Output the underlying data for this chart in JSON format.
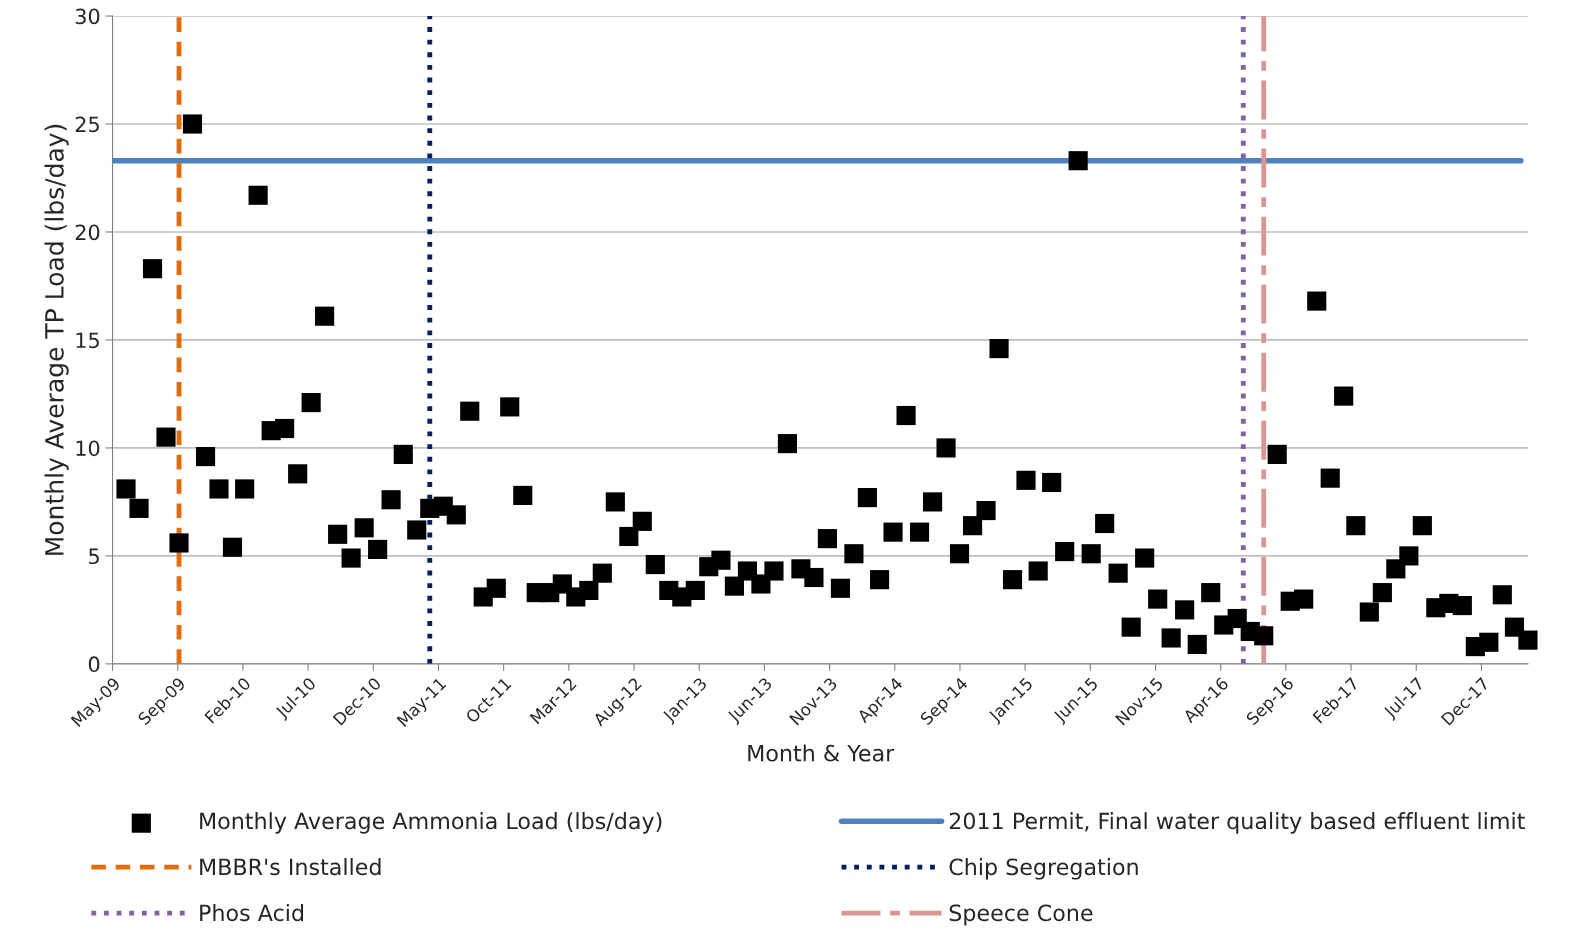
{
  "chart_data": {
    "type": "scatter",
    "xlabel": "Month & Year",
    "ylabel": "Monthly Average TP Load (lbs/day)",
    "x": [
      "2009-06",
      "2009-07",
      "2009-08",
      "2009-09",
      "2009-10",
      "2009-11",
      "2009-12",
      "2010-01",
      "2010-02",
      "2010-03",
      "2010-04",
      "2010-05",
      "2010-06",
      "2010-07",
      "2010-08",
      "2010-09",
      "2010-10",
      "2010-11",
      "2010-12",
      "2011-01",
      "2011-02",
      "2011-03",
      "2011-04",
      "2011-05",
      "2011-06",
      "2011-07",
      "2011-08",
      "2011-09",
      "2011-10",
      "2011-11",
      "2011-12",
      "2012-01",
      "2012-02",
      "2012-03",
      "2012-04",
      "2012-05",
      "2012-06",
      "2012-07",
      "2012-08",
      "2012-09",
      "2012-10",
      "2012-11",
      "2012-12",
      "2013-01",
      "2013-02",
      "2013-03",
      "2013-04",
      "2013-05",
      "2013-06",
      "2013-07",
      "2013-08",
      "2013-09",
      "2013-10",
      "2013-11",
      "2013-12",
      "2014-01",
      "2014-02",
      "2014-03",
      "2014-04",
      "2014-05",
      "2014-06",
      "2014-07",
      "2014-08",
      "2014-09",
      "2014-10",
      "2014-11",
      "2014-12",
      "2015-01",
      "2015-02",
      "2015-03",
      "2015-04",
      "2015-05",
      "2015-06",
      "2015-07",
      "2015-08",
      "2015-09",
      "2015-10",
      "2015-11",
      "2015-12",
      "2016-01",
      "2016-02",
      "2016-03",
      "2016-04",
      "2016-05",
      "2016-06",
      "2016-07",
      "2016-08",
      "2016-09",
      "2016-10",
      "2016-11",
      "2016-12",
      "2017-01",
      "2017-02",
      "2017-03",
      "2017-04",
      "2017-05",
      "2017-06",
      "2017-07",
      "2017-08",
      "2017-09",
      "2017-10",
      "2017-11",
      "2017-12",
      "2018-01",
      "2018-02",
      "2018-03",
      "2018-04"
    ],
    "series": [
      {
        "name": "Monthly Average Ammonia Load (lbs/day)",
        "color": "#000000",
        "values": [
          8.1,
          7.2,
          18.3,
          10.5,
          5.6,
          25.0,
          9.6,
          8.1,
          5.4,
          8.1,
          21.7,
          10.8,
          10.9,
          8.8,
          12.1,
          16.1,
          6.0,
          4.9,
          6.3,
          5.3,
          7.6,
          9.7,
          6.2,
          7.2,
          7.3,
          6.9,
          11.7,
          3.1,
          3.5,
          11.9,
          7.8,
          3.3,
          3.3,
          3.7,
          3.1,
          3.4,
          4.2,
          7.5,
          5.9,
          6.6,
          4.6,
          3.4,
          3.1,
          3.4,
          4.5,
          4.8,
          3.6,
          4.3,
          3.7,
          4.3,
          10.2,
          4.4,
          4.0,
          5.8,
          3.5,
          5.1,
          7.7,
          3.9,
          6.1,
          11.5,
          6.1,
          7.5,
          10.0,
          5.1,
          6.4,
          7.1,
          14.6,
          3.9,
          8.5,
          4.3,
          8.4,
          5.2,
          23.3,
          5.1,
          6.5,
          4.2,
          1.7,
          4.9,
          3.0,
          1.2,
          2.5,
          0.9,
          3.3,
          1.8,
          2.1,
          1.5,
          1.3,
          9.7,
          2.9,
          3.0,
          16.8,
          8.6,
          12.4,
          6.4,
          2.4,
          3.3,
          4.4,
          5.0,
          6.4,
          2.6,
          2.8,
          2.7,
          0.8,
          1.0,
          3.2,
          1.7,
          1.1
        ]
      }
    ],
    "ref_lines": [
      {
        "axis": "y",
        "value": 23.3,
        "label": "2011 Permit, Final water quality based effluent limit",
        "color": "#4f81bd",
        "line_style": "solid"
      },
      {
        "axis": "x",
        "value": "2009-10-01",
        "label": "MBBR's Installed",
        "color": "#e46c0a",
        "line_style": "dashed"
      },
      {
        "axis": "x",
        "value": "2011-05-01",
        "label": "Chip Segregation",
        "color": "#002060",
        "line_style": "dotted"
      },
      {
        "axis": "x",
        "value": "2016-06-15",
        "label": "Phos Acid",
        "color": "#8064a2",
        "line_style": "dotted"
      },
      {
        "axis": "x",
        "value": "2016-08-01",
        "label": "Speece Cone",
        "color": "#d99694",
        "line_style": "dashdot"
      }
    ],
    "xlim": [
      "2009-05-01",
      "2018-04-01"
    ],
    "xticks": [
      {
        "value": "2009-05-01",
        "label": "May-09"
      },
      {
        "value": "2009-09-28",
        "label": "Sep-09"
      },
      {
        "value": "2010-02-25",
        "label": "Feb-10"
      },
      {
        "value": "2010-07-25",
        "label": "Jul-10"
      },
      {
        "value": "2010-12-22",
        "label": "Dec-10"
      },
      {
        "value": "2011-05-21",
        "label": "May-11"
      },
      {
        "value": "2011-10-18",
        "label": "Oct-11"
      },
      {
        "value": "2012-03-16",
        "label": "Mar-12"
      },
      {
        "value": "2012-08-13",
        "label": "Aug-12"
      },
      {
        "value": "2013-01-10",
        "label": "Jan-13"
      },
      {
        "value": "2013-06-09",
        "label": "Jun-13"
      },
      {
        "value": "2013-11-06",
        "label": "Nov-13"
      },
      {
        "value": "2014-04-05",
        "label": "Apr-14"
      },
      {
        "value": "2014-09-02",
        "label": "Sep-14"
      },
      {
        "value": "2015-01-30",
        "label": "Jan-15"
      },
      {
        "value": "2015-06-29",
        "label": "Jun-15"
      },
      {
        "value": "2015-11-26",
        "label": "Nov-15"
      },
      {
        "value": "2016-04-24",
        "label": "Apr-16"
      },
      {
        "value": "2016-09-21",
        "label": "Sep-16"
      },
      {
        "value": "2017-02-18",
        "label": "Feb-17"
      },
      {
        "value": "2017-07-18",
        "label": "Jul-17"
      },
      {
        "value": "2017-12-15",
        "label": "Dec-17"
      }
    ],
    "ylim": [
      0,
      30
    ],
    "yticks": [
      0,
      5,
      10,
      15,
      20,
      25,
      30
    ],
    "grid": "y",
    "legend": "bottom",
    "marker": "square"
  }
}
